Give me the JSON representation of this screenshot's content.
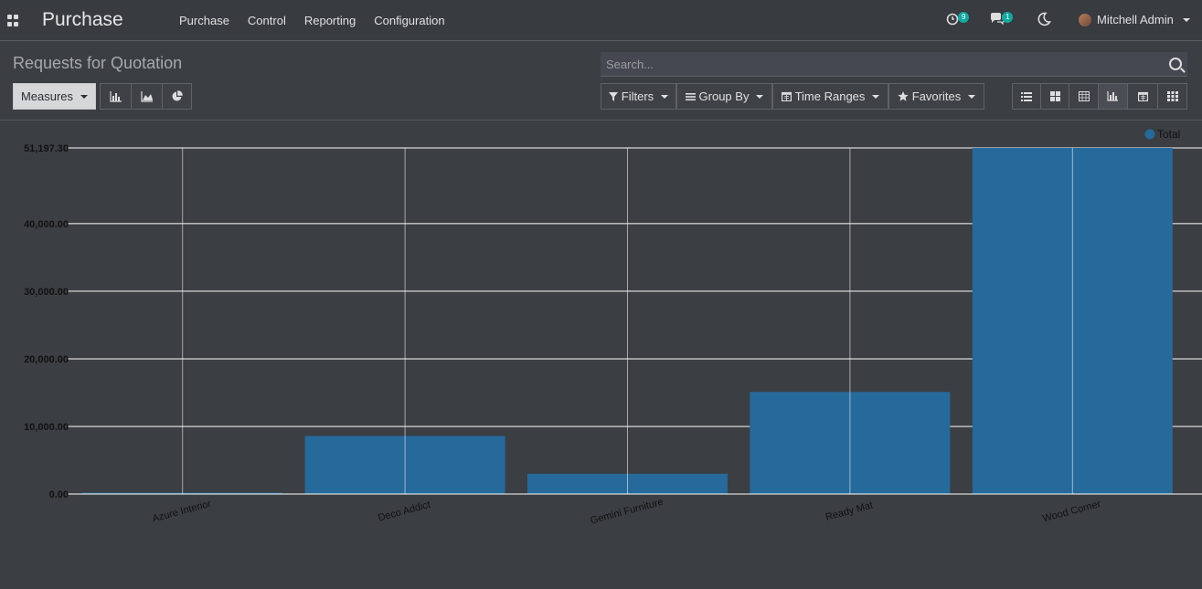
{
  "navbar": {
    "brand": "Purchase",
    "menu": [
      "Purchase",
      "Control",
      "Reporting",
      "Configuration"
    ],
    "activity_count": "9",
    "messages_count": "1",
    "user_name": "Mitchell Admin"
  },
  "control_panel": {
    "title": "Requests for Quotation",
    "search_placeholder": "Search...",
    "measures_label": "Measures",
    "filters_label": "Filters",
    "groupby_label": "Group By",
    "timeranges_label": "Time Ranges",
    "favorites_label": "Favorites"
  },
  "chart_data": {
    "type": "bar",
    "categories": [
      "Azure Interior",
      "Deco Addict",
      "Gemini Furniture",
      "Ready Mat",
      "Wood Corner"
    ],
    "series": [
      {
        "name": "Total",
        "values": [
          200,
          8600,
          3000,
          15100,
          51197.3
        ]
      }
    ],
    "ylim": [
      0,
      51197.3
    ],
    "yticks": [
      0,
      10000,
      20000,
      30000,
      40000,
      51197.3
    ],
    "ytick_labels": [
      "0.00",
      "10,000.00",
      "20,000.00",
      "30,000.00",
      "40,000.00",
      "51,197.30"
    ],
    "legend": "top-right",
    "bar_color": "#26699b",
    "grid": true
  }
}
